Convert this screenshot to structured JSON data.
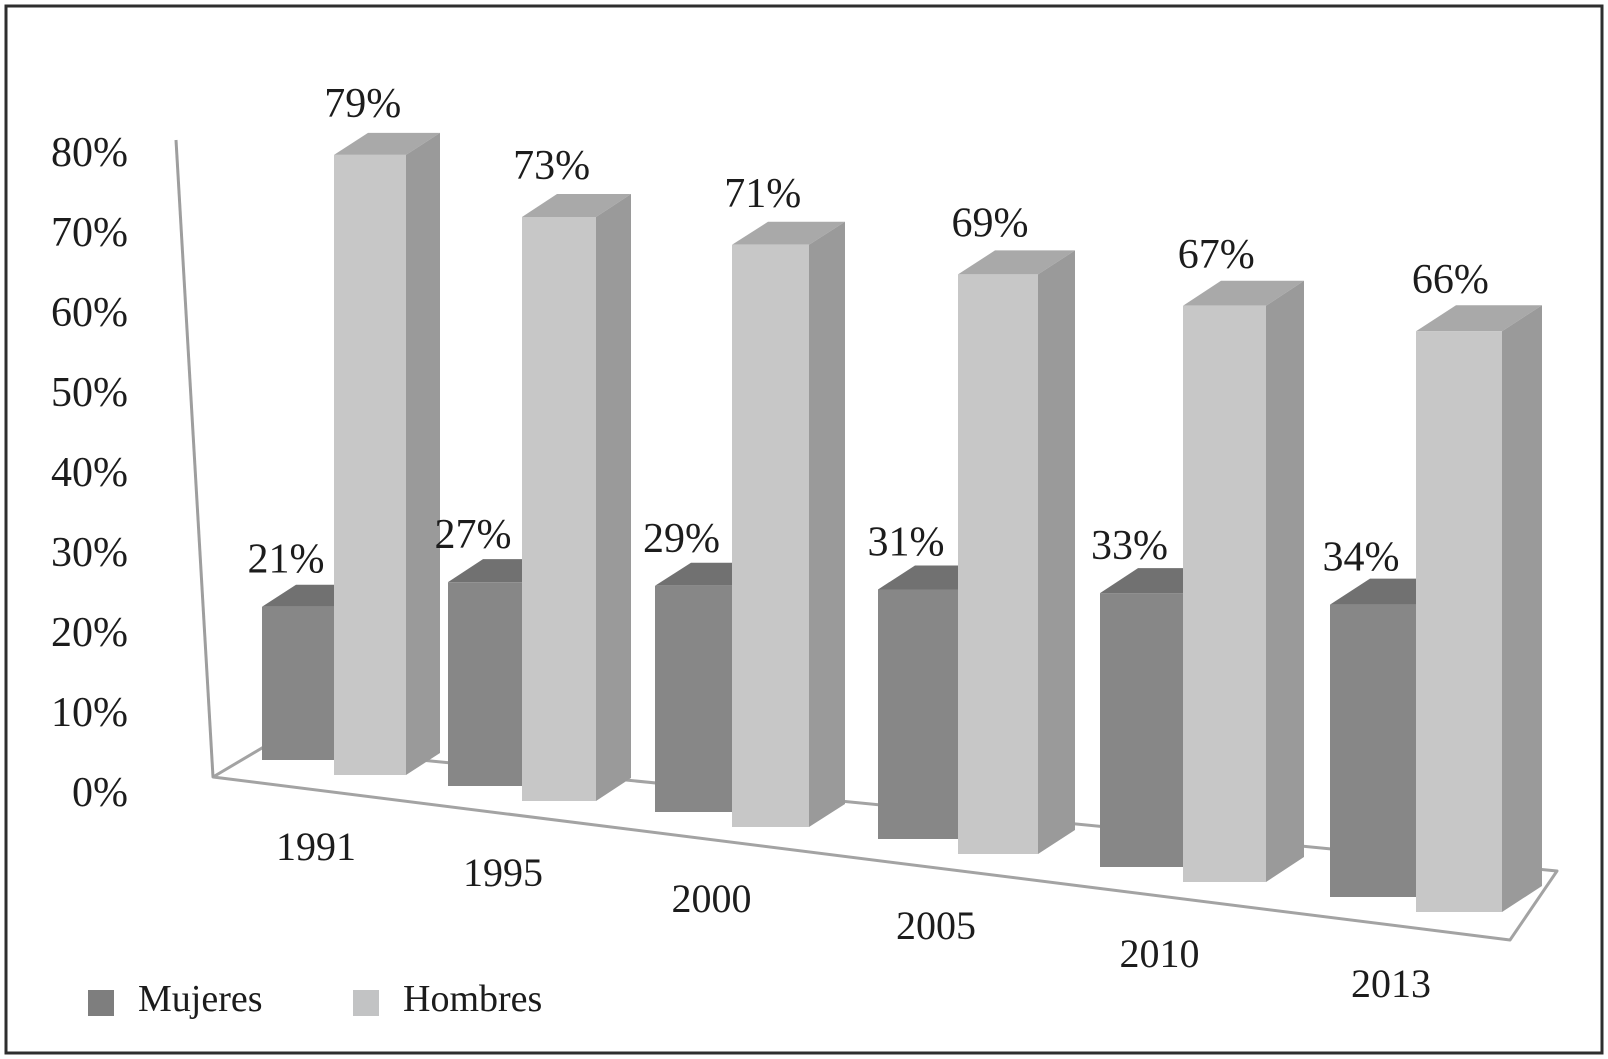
{
  "chart_data": {
    "type": "bar",
    "projection": "3d-perspective",
    "title": "",
    "xlabel": "",
    "ylabel": "",
    "categories": [
      "1991",
      "1995",
      "2000",
      "2005",
      "2010",
      "2013"
    ],
    "series": [
      {
        "name": "Mujeres",
        "values": [
          21,
          27,
          29,
          31,
          33,
          34
        ],
        "data_labels": [
          "21%",
          "27%",
          "29%",
          "31%",
          "33%",
          "34%"
        ],
        "color_front": "#878787",
        "color_top": "#717171",
        "color_side": "#6d6d6d"
      },
      {
        "name": "Hombres",
        "values": [
          79,
          73,
          71,
          69,
          67,
          66
        ],
        "data_labels": [
          "79%",
          "73%",
          "71%",
          "69%",
          "67%",
          "66%"
        ],
        "color_front": "#c7c7c7",
        "color_top": "#a9a9a9",
        "color_side": "#9a9a9a"
      }
    ],
    "y_axis": {
      "min": 0,
      "max": 80,
      "step": 10,
      "tick_labels": [
        "0%",
        "10%",
        "20%",
        "30%",
        "40%",
        "50%",
        "60%",
        "70%",
        "80%"
      ],
      "unit": "%"
    },
    "grid": false,
    "legend": {
      "position": "bottom-left",
      "entries": [
        {
          "label": "Mujeres",
          "swatch_color": "#7e7e7e"
        },
        {
          "label": "Hombres",
          "swatch_color": "#c2c3c4"
        }
      ]
    },
    "frame_color": "#2e2e2e",
    "axis_line_color": "#9e9e9e",
    "floor_line_color": "#a3a3a3",
    "text_color": "#1c1c1c",
    "background_color": "#ffffff"
  }
}
